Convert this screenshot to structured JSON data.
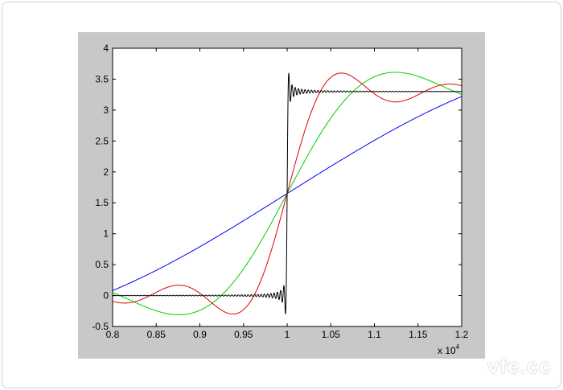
{
  "chart_data": {
    "type": "line",
    "title": "",
    "xlabel": "",
    "ylabel": "",
    "x_multiplier_label": {
      "base": "x 10",
      "exp": "4"
    },
    "xlim": [
      0.8,
      1.2
    ],
    "ylim": [
      -0.5,
      4
    ],
    "grid": false,
    "xticks": [
      "0.8",
      "0.85",
      "0.9",
      "0.95",
      "1",
      "1.05",
      "1.1",
      "1.15",
      "1.2"
    ],
    "yticks": [
      "-0.5",
      "0",
      "0.5",
      "1",
      "1.5",
      "2",
      "2.5",
      "3",
      "3.5",
      "4"
    ],
    "square_wave": {
      "low": 0,
      "high": 3.3,
      "step_at": 1.0,
      "period": 1.49
    },
    "series": [
      {
        "color": "#0000ff",
        "odd_harmonics": 1
      },
      {
        "color": "#00d000",
        "odd_harmonics": 3
      },
      {
        "color": "#e00000",
        "odd_harmonics": 6
      },
      {
        "color": "#000000",
        "odd_harmonics": 200
      }
    ]
  },
  "watermark": "vfe.cc"
}
